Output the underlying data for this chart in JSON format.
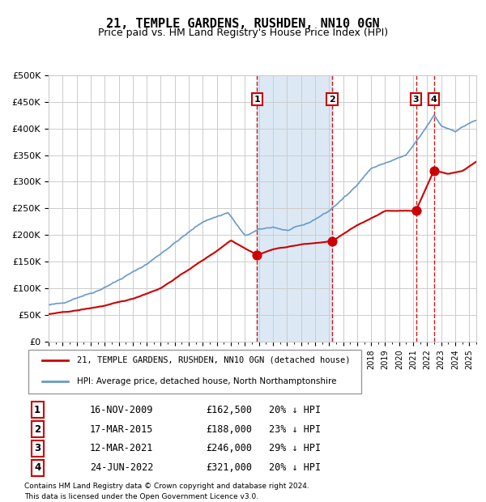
{
  "title": "21, TEMPLE GARDENS, RUSHDEN, NN10 0GN",
  "subtitle": "Price paid vs. HM Land Registry's House Price Index (HPI)",
  "legend_property": "21, TEMPLE GARDENS, RUSHDEN, NN10 0GN (detached house)",
  "legend_hpi": "HPI: Average price, detached house, North Northamptonshire",
  "footer_line1": "Contains HM Land Registry data © Crown copyright and database right 2024.",
  "footer_line2": "This data is licensed under the Open Government Licence v3.0.",
  "sales": [
    {
      "num": 1,
      "date": "16-NOV-2009",
      "date_dec": 2009.87,
      "price": 162500,
      "pct": "20% ↓ HPI"
    },
    {
      "num": 2,
      "date": "17-MAR-2015",
      "date_dec": 2015.21,
      "price": 188000,
      "pct": "23% ↓ HPI"
    },
    {
      "num": 3,
      "date": "12-MAR-2021",
      "date_dec": 2021.2,
      "price": 246000,
      "pct": "29% ↓ HPI"
    },
    {
      "num": 4,
      "date": "24-JUN-2022",
      "date_dec": 2022.48,
      "price": 321000,
      "pct": "20% ↓ HPI"
    }
  ],
  "property_color": "#cc0000",
  "hpi_color": "#6699cc",
  "shading_color": "#dce9f5",
  "vline_color": "#cc0000",
  "grid_color": "#cccccc",
  "background_color": "#ffffff",
  "ylim": [
    0,
    500000
  ],
  "xlim_start": 1995.0,
  "xlim_end": 2025.5
}
